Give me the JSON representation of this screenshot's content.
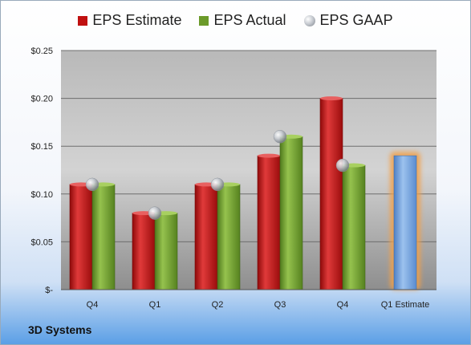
{
  "legend": {
    "estimate": "EPS Estimate",
    "actual": "EPS Actual",
    "gaap": "EPS GAAP"
  },
  "company": "3D Systems",
  "colors": {
    "estimate": "#c01010",
    "actual": "#6b9a2a",
    "forecast": "#6f9fd8",
    "forecast_glow": "#f2a04a",
    "gaap": "#c8ccd2"
  },
  "chart_data": {
    "type": "bar",
    "categories": [
      "Q4",
      "Q1",
      "Q2",
      "Q3",
      "Q4",
      "Q1 Estimate"
    ],
    "series": [
      {
        "name": "EPS Estimate",
        "values": [
          0.11,
          0.08,
          0.11,
          0.14,
          0.2,
          0.14
        ]
      },
      {
        "name": "EPS Actual",
        "values": [
          0.11,
          0.08,
          0.11,
          0.16,
          0.13,
          null
        ]
      },
      {
        "name": "EPS GAAP",
        "values": [
          0.11,
          0.08,
          0.11,
          0.16,
          0.13,
          null
        ]
      }
    ],
    "ylim": [
      0,
      0.25
    ],
    "yticks": [
      0,
      0.05,
      0.1,
      0.15,
      0.2,
      0.25
    ],
    "ytick_labels": [
      "$-",
      "$0.05",
      "$0.10",
      "$0.15",
      "$0.20",
      "$0.25"
    ],
    "grid": true,
    "legend_position": "top"
  }
}
